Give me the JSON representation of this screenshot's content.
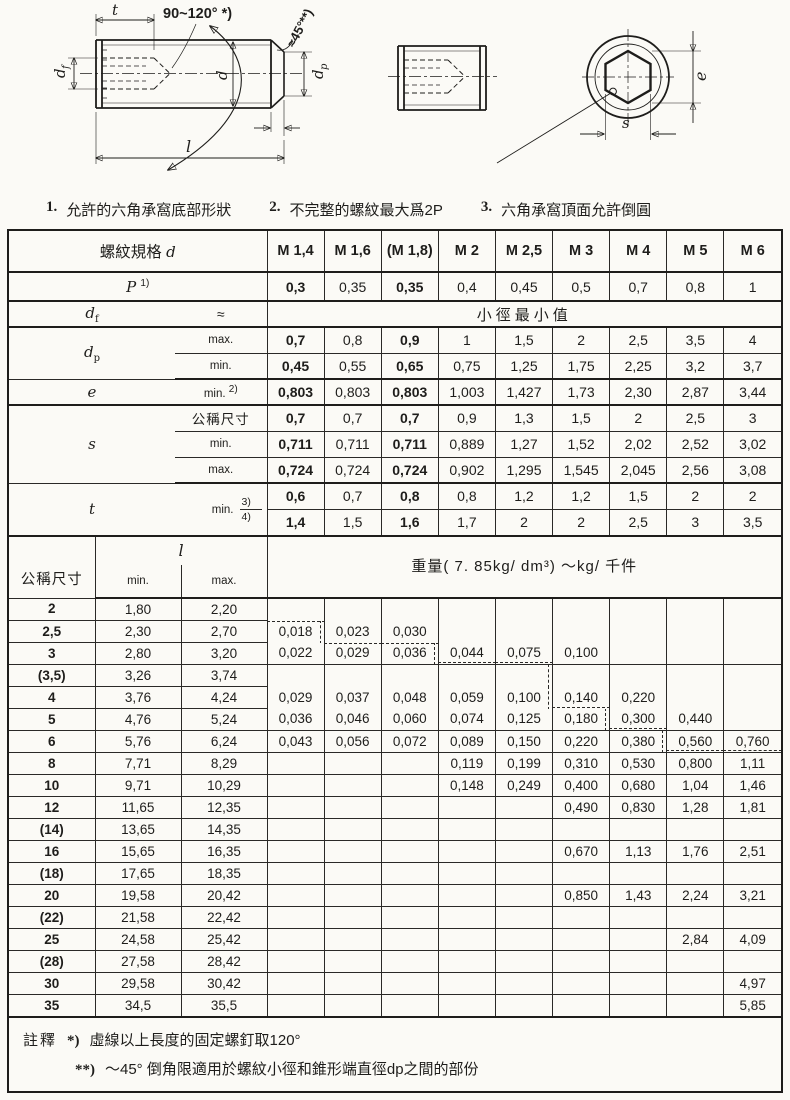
{
  "drawing": {
    "angle_socket": "90~120° *)",
    "angle_chamfer": "≈45°**)",
    "dim_t": "t",
    "dim_d": "d",
    "dim_l": "l",
    "dim_e": "e",
    "dim_s": "s",
    "dim_df_main": "d",
    "dim_df_sub": "f",
    "dim_dp_main": "d",
    "dim_dp_sub": "p"
  },
  "notes": [
    {
      "n": "1.",
      "t": "允許的六角承窩底部形狀"
    },
    {
      "n": "2.",
      "t": "不完整的螺紋最大爲2P"
    },
    {
      "n": "3.",
      "t": "六角承窩頂面允許倒圓"
    }
  ],
  "upper": {
    "spec_label": "螺紋規格",
    "spec_var": "d",
    "columns": [
      "M 1,4",
      "M 1,6",
      "(M 1,8)",
      "M 2",
      "M 2,5",
      "M 3",
      "M 4",
      "M 5",
      "M 6"
    ],
    "p_label": "P",
    "p_sup": "1)",
    "p_values": [
      "0,3",
      "0,35",
      "0,35",
      "0,4",
      "0,45",
      "0,5",
      "0,7",
      "0,8",
      "1"
    ],
    "df_main": "d",
    "df_sub": "f",
    "df_approx": "≈",
    "df_span": "小徑最小值",
    "dp_main": "d",
    "dp_sub": "p",
    "max_label": "max.",
    "min_label": "min.",
    "dp_max": [
      "0,7",
      "0,8",
      "0,9",
      "1",
      "1,5",
      "2",
      "2,5",
      "3,5",
      "4"
    ],
    "dp_min": [
      "0,45",
      "0,55",
      "0,65",
      "0,75",
      "1,25",
      "1,75",
      "2,25",
      "3,2",
      "3,7"
    ],
    "e_label": "e",
    "e_min_label": "min.",
    "e_sup": "2)",
    "e_values": [
      "0,803",
      "0,803",
      "0,803",
      "1,003",
      "1,427",
      "1,73",
      "2,30",
      "2,87",
      "3,44"
    ],
    "s_label": "s",
    "s_nom_label": "公稱尺寸",
    "s_nom": [
      "0,7",
      "0,7",
      "0,7",
      "0,9",
      "1,3",
      "1,5",
      "2",
      "2,5",
      "3"
    ],
    "s_min": [
      "0,711",
      "0,711",
      "0,711",
      "0,889",
      "1,27",
      "1,52",
      "2,02",
      "2,52",
      "3,02"
    ],
    "s_max": [
      "0,724",
      "0,724",
      "0,724",
      "0,902",
      "1,295",
      "1,545",
      "2,045",
      "2,56",
      "3,08"
    ],
    "t_label": "t",
    "t_min_label": "min.",
    "t_sup3": "3)",
    "t_sup4": "4)",
    "t_min3": [
      "0,6",
      "0,7",
      "0,8",
      "0,8",
      "1,2",
      "1,2",
      "1,5",
      "2",
      "2"
    ],
    "t_min4": [
      "1,4",
      "1,5",
      "1,6",
      "1,7",
      "2",
      "2",
      "2,5",
      "3",
      "3,5"
    ]
  },
  "lower": {
    "l_label": "l",
    "size_label": "公稱尺寸",
    "min_label": "min.",
    "max_label": "max.",
    "weight_header": "重量( 7. 85kg/ dm³)  ～kg/ 千件",
    "rows": [
      {
        "size": "2",
        "min": "1,80",
        "max": "2,20",
        "weights": [
          "",
          "",
          "",
          "",
          "",
          "",
          "",
          "",
          ""
        ]
      },
      {
        "size": "2,5",
        "min": "2,30",
        "max": "2,70",
        "weights": [
          "0,018",
          "0,023",
          "0,030",
          "",
          "",
          "",
          "",
          "",
          ""
        ],
        "dash": {
          "0": "tr"
        },
        "no_top": true
      },
      {
        "size": "3",
        "min": "2,80",
        "max": "3,20",
        "weights": [
          "0,022",
          "0,029",
          "0,036",
          "0,044",
          "0,075",
          "0,100",
          "",
          "",
          ""
        ],
        "dash": {
          "1": "t",
          "2": "tr",
          "3": "b",
          "4": "b"
        },
        "no_top": true
      },
      {
        "size": "(3,5)",
        "min": "3,26",
        "max": "3,74",
        "weights": [
          "",
          "",
          "",
          "",
          "",
          "",
          "",
          "",
          ""
        ],
        "dash": {
          "4": "r"
        }
      },
      {
        "size": "4",
        "min": "3,76",
        "max": "4,24",
        "weights": [
          "0,029",
          "0,037",
          "0,048",
          "0,059",
          "0,100",
          "0,140",
          "0,220",
          "",
          ""
        ],
        "dash": {
          "4": "r",
          "5": "b"
        },
        "no_top": true
      },
      {
        "size": "5",
        "min": "4,76",
        "max": "5,24",
        "weights": [
          "0,036",
          "0,046",
          "0,060",
          "0,074",
          "0,125",
          "0,180",
          "0,300",
          "0,440",
          ""
        ],
        "dash": {
          "5": "r",
          "6": "b"
        },
        "no_top": true
      },
      {
        "size": "6",
        "min": "5,76",
        "max": "6,24",
        "weights": [
          "0,043",
          "0,056",
          "0,072",
          "0,089",
          "0,150",
          "0,220",
          "0,380",
          "0,560",
          "0,760"
        ],
        "dash": {
          "6": "r",
          "7": "b",
          "8": "b"
        }
      },
      {
        "size": "8",
        "min": "7,71",
        "max": "8,29",
        "weights": [
          "",
          "",
          "",
          "0,119",
          "0,199",
          "0,310",
          "0,530",
          "0,800",
          "1,11"
        ]
      },
      {
        "size": "10",
        "min": "9,71",
        "max": "10,29",
        "weights": [
          "",
          "",
          "",
          "0,148",
          "0,249",
          "0,400",
          "0,680",
          "1,04",
          "1,46"
        ]
      },
      {
        "size": "12",
        "min": "11,65",
        "max": "12,35",
        "weights": [
          "",
          "",
          "",
          "",
          "",
          "0,490",
          "0,830",
          "1,28",
          "1,81"
        ]
      },
      {
        "size": "(14)",
        "min": "13,65",
        "max": "14,35",
        "weights": [
          "",
          "",
          "",
          "",
          "",
          "",
          "",
          "",
          ""
        ]
      },
      {
        "size": "16",
        "min": "15,65",
        "max": "16,35",
        "weights": [
          "",
          "",
          "",
          "",
          "",
          "0,670",
          "1,13",
          "1,76",
          "2,51"
        ]
      },
      {
        "size": "(18)",
        "min": "17,65",
        "max": "18,35",
        "weights": [
          "",
          "",
          "",
          "",
          "",
          "",
          "",
          "",
          ""
        ]
      },
      {
        "size": "20",
        "min": "19,58",
        "max": "20,42",
        "weights": [
          "",
          "",
          "",
          "",
          "",
          "0,850",
          "1,43",
          "2,24",
          "3,21"
        ]
      },
      {
        "size": "(22)",
        "min": "21,58",
        "max": "22,42",
        "weights": [
          "",
          "",
          "",
          "",
          "",
          "",
          "",
          "",
          ""
        ]
      },
      {
        "size": "25",
        "min": "24,58",
        "max": "25,42",
        "weights": [
          "",
          "",
          "",
          "",
          "",
          "",
          "",
          "2,84",
          "4,09"
        ]
      },
      {
        "size": "(28)",
        "min": "27,58",
        "max": "28,42",
        "weights": [
          "",
          "",
          "",
          "",
          "",
          "",
          "",
          "",
          ""
        ]
      },
      {
        "size": "30",
        "min": "29,58",
        "max": "30,42",
        "weights": [
          "",
          "",
          "",
          "",
          "",
          "",
          "",
          "",
          "4,97"
        ]
      },
      {
        "size": "35",
        "min": "34,5",
        "max": "35,5",
        "weights": [
          "",
          "",
          "",
          "",
          "",
          "",
          "",
          "",
          "5,85"
        ]
      }
    ]
  },
  "footer": {
    "label": "註釋",
    "sym1": "*)",
    "line1": "虛線以上長度的固定螺釘取120°",
    "sym2": "**)",
    "line2": "～45° 倒角限適用於螺紋小徑和錐形端直徑dp之間的部份"
  }
}
